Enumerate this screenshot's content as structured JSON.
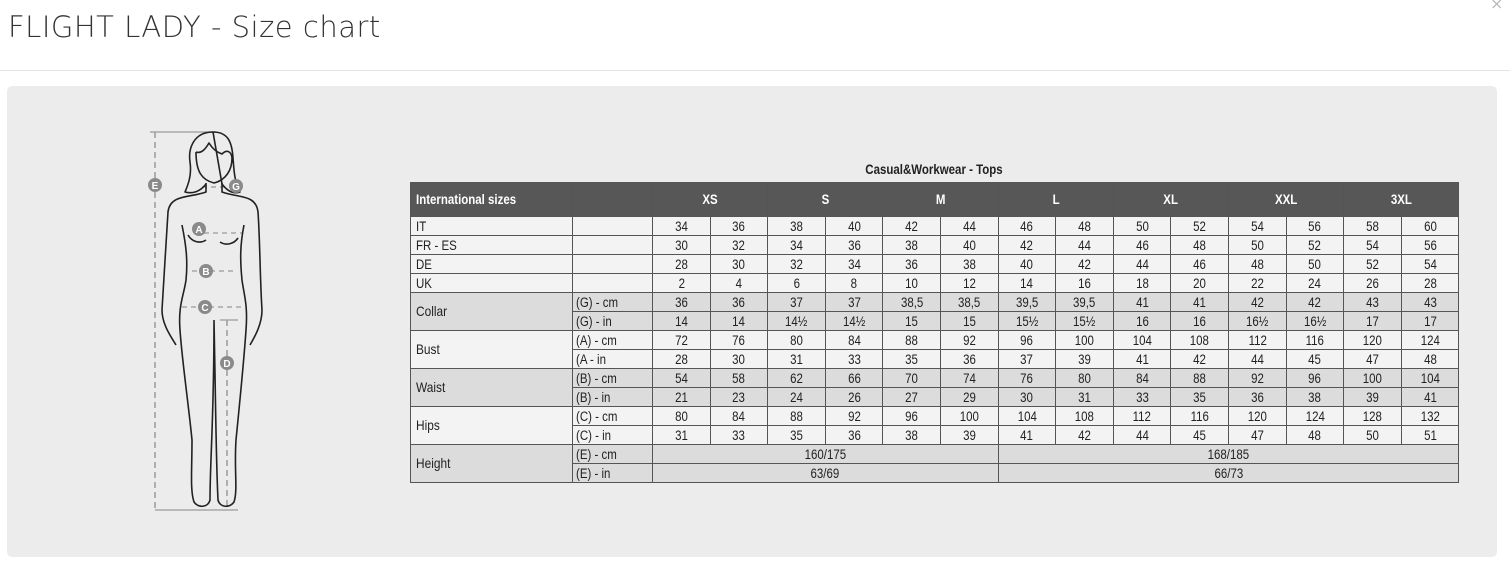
{
  "header": {
    "title": "FLIGHT LADY - Size chart",
    "close_icon": "close-icon"
  },
  "figure": {
    "labels": [
      "E",
      "G",
      "A",
      "B",
      "C",
      "D"
    ]
  },
  "table": {
    "caption": "Casual&Workwear - Tops",
    "header_label": "International sizes",
    "sizes": [
      "XS",
      "S",
      "M",
      "L",
      "XL",
      "XXL",
      "3XL"
    ],
    "simple_rows": [
      {
        "label": "IT",
        "values": [
          "34",
          "36",
          "38",
          "40",
          "42",
          "44",
          "46",
          "48",
          "50",
          "52",
          "54",
          "56",
          "58",
          "60"
        ]
      },
      {
        "label": "FR - ES",
        "values": [
          "30",
          "32",
          "34",
          "36",
          "38",
          "40",
          "42",
          "44",
          "46",
          "48",
          "50",
          "52",
          "54",
          "56"
        ]
      },
      {
        "label": "DE",
        "values": [
          "28",
          "30",
          "32",
          "34",
          "36",
          "38",
          "40",
          "42",
          "44",
          "46",
          "48",
          "50",
          "52",
          "54"
        ]
      },
      {
        "label": "UK",
        "values": [
          "2",
          "4",
          "6",
          "8",
          "10",
          "12",
          "14",
          "16",
          "18",
          "20",
          "22",
          "24",
          "26",
          "28"
        ]
      }
    ],
    "groups": [
      {
        "label": "Collar",
        "shade": "dark",
        "rows": [
          {
            "sub": "(G) - cm",
            "values": [
              "36",
              "36",
              "37",
              "37",
              "38,5",
              "38,5",
              "39,5",
              "39,5",
              "41",
              "41",
              "42",
              "42",
              "43",
              "43"
            ]
          },
          {
            "sub": "(G) - in",
            "values": [
              "14",
              "14",
              "14½",
              "14½",
              "15",
              "15",
              "15½",
              "15½",
              "16",
              "16",
              "16½",
              "16½",
              "17",
              "17"
            ]
          }
        ]
      },
      {
        "label": "Bust",
        "shade": "light",
        "rows": [
          {
            "sub": "(A) - cm",
            "values": [
              "72",
              "76",
              "80",
              "84",
              "88",
              "92",
              "96",
              "100",
              "104",
              "108",
              "112",
              "116",
              "120",
              "124"
            ]
          },
          {
            "sub": "(A - in",
            "values": [
              "28",
              "30",
              "31",
              "33",
              "35",
              "36",
              "37",
              "39",
              "41",
              "42",
              "44",
              "45",
              "47",
              "48"
            ]
          }
        ]
      },
      {
        "label": "Waist",
        "shade": "dark",
        "rows": [
          {
            "sub": "(B) - cm",
            "values": [
              "54",
              "58",
              "62",
              "66",
              "70",
              "74",
              "76",
              "80",
              "84",
              "88",
              "92",
              "96",
              "100",
              "104"
            ]
          },
          {
            "sub": "(B) - in",
            "values": [
              "21",
              "23",
              "24",
              "26",
              "27",
              "29",
              "30",
              "31",
              "33",
              "35",
              "36",
              "38",
              "39",
              "41"
            ]
          }
        ]
      },
      {
        "label": "Hips",
        "shade": "light",
        "rows": [
          {
            "sub": "(C) - cm",
            "values": [
              "80",
              "84",
              "88",
              "92",
              "96",
              "100",
              "104",
              "108",
              "112",
              "116",
              "120",
              "124",
              "128",
              "132"
            ]
          },
          {
            "sub": "(C) - in",
            "values": [
              "31",
              "33",
              "35",
              "36",
              "38",
              "39",
              "41",
              "42",
              "44",
              "45",
              "47",
              "48",
              "50",
              "51"
            ]
          }
        ]
      }
    ],
    "height": {
      "label": "Height",
      "rows": [
        {
          "sub": "(E) - cm",
          "values": [
            "160/175",
            "168/185"
          ]
        },
        {
          "sub": "(E) - in",
          "values": [
            "63/69",
            "66/73"
          ]
        }
      ]
    }
  }
}
